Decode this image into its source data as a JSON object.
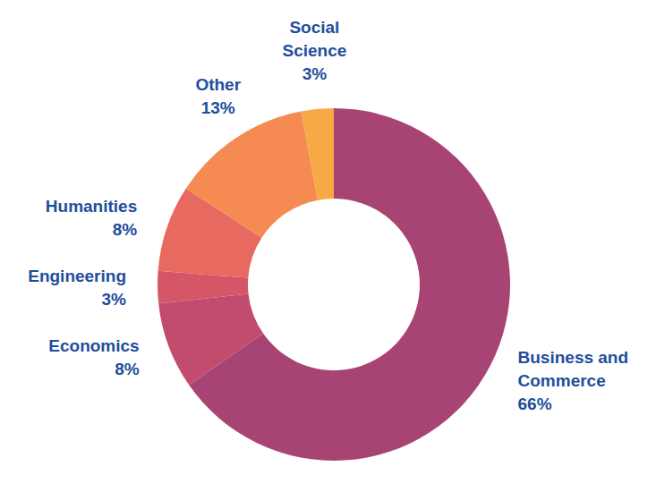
{
  "chart_data": {
    "type": "donut",
    "categories": [
      "Business and Commerce",
      "Economics",
      "Engineering",
      "Humanities",
      "Other",
      "Social Science"
    ],
    "values": [
      66,
      8,
      3,
      8,
      13,
      3
    ],
    "value_labels": [
      "66%",
      "8%",
      "3%",
      "8%",
      "13%",
      "3%"
    ],
    "colors": [
      "#a84473",
      "#c24c6e",
      "#d55667",
      "#e8695f",
      "#f58b52",
      "#f6a944"
    ],
    "data_labels": true
  }
}
